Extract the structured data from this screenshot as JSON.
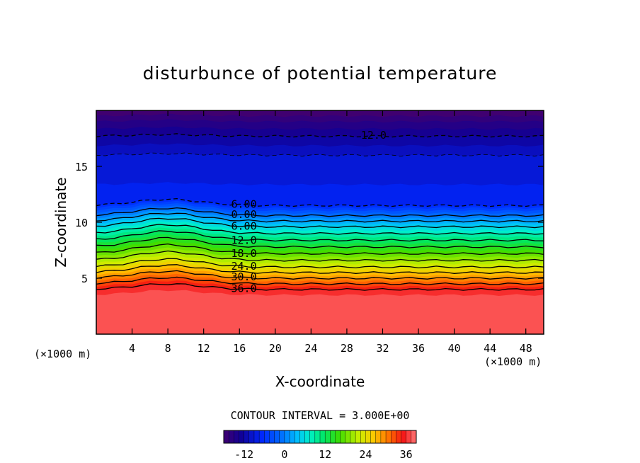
{
  "chart_data": {
    "type": "contour",
    "title": "disturbunce of potential temperature",
    "xlabel": "X-coordinate",
    "ylabel": "Z-coordinate",
    "x_units": "(×1000 m)",
    "x_units_right": "(×1000 m)",
    "xlim": [
      0,
      50
    ],
    "ylim": [
      0,
      20
    ],
    "x_ticks": [
      4,
      8,
      12,
      16,
      20,
      24,
      28,
      32,
      36,
      40,
      44,
      48
    ],
    "y_ticks": [
      5,
      10,
      15
    ],
    "contour_interval_text": "CONTOUR INTERVAL = 3.000E+00",
    "contour_interval": 3.0,
    "contour_labels": [
      "12.0",
      "6.00",
      "0.00",
      "6.00",
      "12.0",
      "18.0",
      "24.0",
      "30.0",
      "36.0"
    ],
    "color_range": [
      -18,
      39
    ],
    "colorbar_ticks": [
      "-12",
      "0",
      "12",
      "24",
      "36"
    ],
    "colorbar_tick_values": [
      -12,
      0,
      12,
      24,
      36
    ],
    "vertical_profile": [
      {
        "z": 0,
        "value": 38
      },
      {
        "z": 3.5,
        "value": 37.5
      },
      {
        "z": 4.0,
        "value": 36
      },
      {
        "z": 5.0,
        "value": 30
      },
      {
        "z": 6.0,
        "value": 24
      },
      {
        "z": 7.2,
        "value": 18
      },
      {
        "z": 8.4,
        "value": 12
      },
      {
        "z": 9.6,
        "value": 6
      },
      {
        "z": 10.6,
        "value": 0
      },
      {
        "z": 11.5,
        "value": -6
      },
      {
        "z": 14.0,
        "value": -8
      },
      {
        "z": 16.0,
        "value": -9
      },
      {
        "z": 17.7,
        "value": -12
      },
      {
        "z": 19.0,
        "value": -15
      },
      {
        "z": 20.0,
        "value": -18
      }
    ],
    "grid": false,
    "colormap": "rainbow"
  }
}
